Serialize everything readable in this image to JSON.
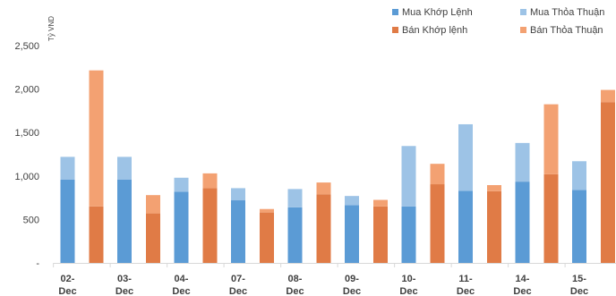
{
  "chart_data": {
    "type": "bar",
    "stacked": true,
    "ylabel": "Tỷ VND",
    "ylim": [
      0,
      2500
    ],
    "yticks": [
      {
        "value": 0,
        "label": "-"
      },
      {
        "value": 500,
        "label": "500"
      },
      {
        "value": 1000,
        "label": "1,000"
      },
      {
        "value": 1500,
        "label": "1,500"
      },
      {
        "value": 2000,
        "label": "2,000"
      },
      {
        "value": 2500,
        "label": "2,500"
      }
    ],
    "grid": false,
    "legend_position": "top-right",
    "categories": [
      {
        "line1": "02-",
        "line2": "Dec"
      },
      {
        "line1": "03-",
        "line2": "Dec"
      },
      {
        "line1": "04-",
        "line2": "Dec"
      },
      {
        "line1": "07-",
        "line2": "Dec"
      },
      {
        "line1": "08-",
        "line2": "Dec"
      },
      {
        "line1": "09-",
        "line2": "Dec"
      },
      {
        "line1": "10-",
        "line2": "Dec"
      },
      {
        "line1": "11-",
        "line2": "Dec"
      },
      {
        "line1": "14-",
        "line2": "Dec"
      },
      {
        "line1": "15-",
        "line2": "Dec"
      },
      {
        "line1": "",
        "line2": ""
      }
    ],
    "groups": [
      {
        "name": "Mua",
        "series": [
          {
            "name": "Mua Khớp Lệnh",
            "color": "#5b9bd5",
            "values": [
              960,
              960,
              820,
              720,
              640,
              665,
              650,
              830,
              935,
              840,
              null
            ]
          },
          {
            "name": "Mua Thỏa Thuận",
            "color": "#9dc3e6",
            "values": [
              260,
              260,
              160,
              140,
              210,
              105,
              695,
              765,
              445,
              330,
              null
            ]
          }
        ]
      },
      {
        "name": "Bán",
        "series": [
          {
            "name": "Bán Khớp lệnh",
            "color": "#e07b46",
            "values": [
              650,
              570,
              860,
              580,
              790,
              650,
              905,
              825,
              1020,
              1850
            ]
          },
          {
            "name": "Bán Thỏa Thuận",
            "color": "#f3a172",
            "values": [
              1565,
              210,
              170,
              40,
              135,
              75,
              235,
              70,
              805,
              140
            ]
          }
        ]
      }
    ]
  }
}
